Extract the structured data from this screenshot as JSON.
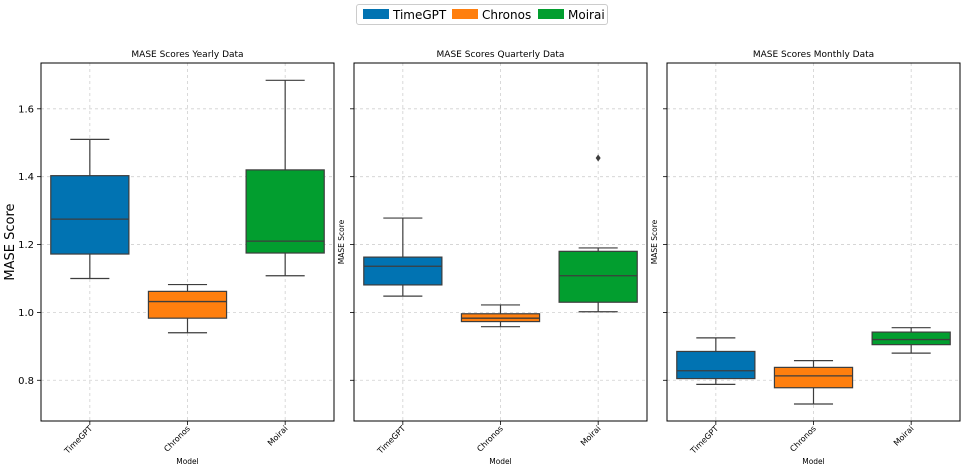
{
  "legend": {
    "items": [
      {
        "label": "TimeGPT",
        "color": "#0173b2"
      },
      {
        "label": "Chronos",
        "color": "#ff7f0e"
      },
      {
        "label": "Moirai",
        "color": "#029e2f"
      }
    ]
  },
  "chart_data": [
    {
      "type": "box",
      "title": "MASE Scores Yearly Data",
      "xlabel": "Model",
      "ylabel": "MASE Score",
      "categories": [
        "TimeGPT",
        "Chronos",
        "Moirai"
      ],
      "ylim": [
        0.68,
        1.735
      ],
      "yticks": [
        "0.8",
        "1.0",
        "1.2",
        "1.4",
        "1.6"
      ],
      "grid": true,
      "boxes": [
        {
          "name": "TimeGPT",
          "whisker_low": 1.1,
          "q1": 1.172,
          "median": 1.275,
          "q3": 1.403,
          "whisker_high": 1.51,
          "outliers": []
        },
        {
          "name": "Chronos",
          "whisker_low": 0.94,
          "q1": 0.983,
          "median": 1.032,
          "q3": 1.062,
          "whisker_high": 1.082,
          "outliers": []
        },
        {
          "name": "Moirai",
          "whisker_low": 1.108,
          "q1": 1.175,
          "median": 1.21,
          "q3": 1.42,
          "whisker_high": 1.684,
          "outliers": []
        }
      ]
    },
    {
      "type": "box",
      "title": "MASE Scores Quarterly Data",
      "xlabel": "Model",
      "ylabel": "MASE Score",
      "categories": [
        "TimeGPT",
        "Chronos",
        "Moirai"
      ],
      "ylim": [
        0.68,
        1.735
      ],
      "yticks": [],
      "grid": true,
      "boxes": [
        {
          "name": "TimeGPT",
          "whisker_low": 1.048,
          "q1": 1.081,
          "median": 1.136,
          "q3": 1.163,
          "whisker_high": 1.278,
          "outliers": []
        },
        {
          "name": "Chronos",
          "whisker_low": 0.958,
          "q1": 0.973,
          "median": 0.983,
          "q3": 0.996,
          "whisker_high": 1.022,
          "outliers": []
        },
        {
          "name": "Moirai",
          "whisker_low": 1.002,
          "q1": 1.03,
          "median": 1.108,
          "q3": 1.18,
          "whisker_high": 1.19,
          "outliers": [
            1.455
          ]
        }
      ]
    },
    {
      "type": "box",
      "title": "MASE Scores Monthly Data",
      "xlabel": "Model",
      "ylabel": "MASE Score",
      "categories": [
        "TimeGPT",
        "Chronos",
        "Moirai"
      ],
      "ylim": [
        0.68,
        1.735
      ],
      "yticks": [],
      "grid": true,
      "boxes": [
        {
          "name": "TimeGPT",
          "whisker_low": 0.788,
          "q1": 0.805,
          "median": 0.828,
          "q3": 0.885,
          "whisker_high": 0.925,
          "outliers": []
        },
        {
          "name": "Chronos",
          "whisker_low": 0.73,
          "q1": 0.778,
          "median": 0.813,
          "q3": 0.838,
          "whisker_high": 0.858,
          "outliers": []
        },
        {
          "name": "Moirai",
          "whisker_low": 0.88,
          "q1": 0.905,
          "median": 0.92,
          "q3": 0.942,
          "whisker_high": 0.955,
          "outliers": []
        }
      ]
    }
  ]
}
